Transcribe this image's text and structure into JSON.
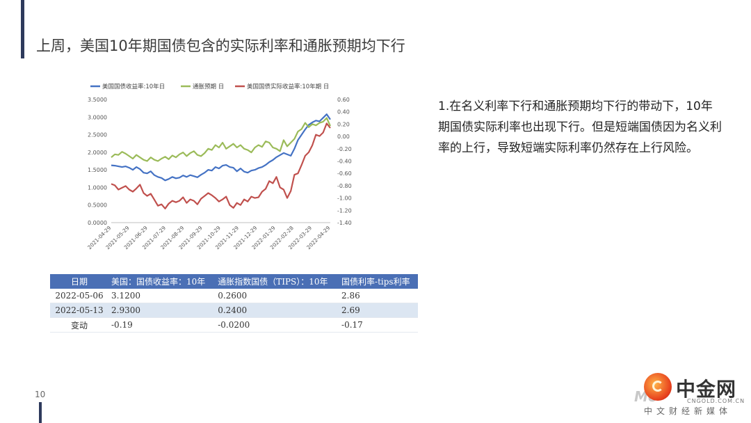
{
  "slide": {
    "title": "上周，美国10年期国债包含的实际利率和通胀预期均下行",
    "page_number": "10"
  },
  "side_text": "1.在名义利率下行和通胀预期均下行的带动下，10年期国债实际利率也出现下行。但是短端国债因为名义利率的上行，导致短端实际利率仍然存在上行风险。",
  "table": {
    "headers": [
      "日期",
      "美国：国债收益率：10年",
      "通胀指数国债（TIPS）：10年",
      "国债利率-tips利率"
    ],
    "rows": [
      [
        "2022-05-06",
        "3.1200",
        "0.2600",
        "2.86"
      ],
      [
        "2022-05-13",
        "2.9300",
        "0.2400",
        "2.69"
      ],
      [
        "变动",
        "-0.19",
        "-0.0200",
        "-0.17"
      ]
    ]
  },
  "logo": {
    "name": "中金网",
    "url": "CNGOLD.COM.CN",
    "tagline": "中文财经新媒体",
    "watermark": "Mo"
  },
  "colors": {
    "nominal": "#4472c4",
    "inflation": "#9bbb59",
    "real": "#c0504d",
    "accent": "#2e3a5c",
    "table_header": "#4a6fb5"
  },
  "chart_data": {
    "type": "line",
    "legend_position": "top",
    "grid": false,
    "x_ticks": [
      "2021-04-29",
      "2021-05-29",
      "2021-06-29",
      "2021-07-29",
      "2021-08-29",
      "2021-09-29",
      "2021-10-29",
      "2021-11-29",
      "2021-12-29",
      "2022-01-29",
      "2022-02-28",
      "2022-03-29",
      "2022-04-29"
    ],
    "y_left": {
      "ticks": [
        "0.0000",
        "0.5000",
        "1.0000",
        "1.5000",
        "2.0000",
        "2.5000",
        "3.0000",
        "3.5000"
      ],
      "range": [
        0,
        3.5
      ]
    },
    "y_right": {
      "ticks": [
        "-1.40",
        "-1.20",
        "-1.00",
        "-0.80",
        "-0.60",
        "-0.40",
        "-0.20",
        "0.00",
        "0.20",
        "0.40",
        "0.60"
      ],
      "range": [
        -1.4,
        0.6
      ]
    },
    "series": [
      {
        "name": "美国国债收益率:10年日",
        "axis": "left",
        "color": "#4472c4",
        "values": [
          1.63,
          1.62,
          1.6,
          1.58,
          1.6,
          1.56,
          1.5,
          1.58,
          1.52,
          1.42,
          1.4,
          1.46,
          1.35,
          1.3,
          1.27,
          1.2,
          1.24,
          1.3,
          1.26,
          1.28,
          1.34,
          1.3,
          1.35,
          1.32,
          1.29,
          1.36,
          1.42,
          1.5,
          1.48,
          1.58,
          1.54,
          1.62,
          1.64,
          1.58,
          1.56,
          1.46,
          1.54,
          1.45,
          1.42,
          1.48,
          1.5,
          1.55,
          1.58,
          1.64,
          1.72,
          1.78,
          1.86,
          1.92,
          1.98,
          1.94,
          1.9,
          2.1,
          2.35,
          2.5,
          2.65,
          2.78,
          2.85,
          2.9,
          2.88,
          2.98,
          3.08,
          2.93
        ]
      },
      {
        "name": "通胀预期 日",
        "axis": "right",
        "color": "#9bbb59",
        "values": [
          -0.34,
          -0.29,
          -0.3,
          -0.25,
          -0.28,
          -0.32,
          -0.36,
          -0.3,
          -0.34,
          -0.38,
          -0.4,
          -0.34,
          -0.38,
          -0.4,
          -0.36,
          -0.33,
          -0.37,
          -0.31,
          -0.34,
          -0.29,
          -0.26,
          -0.32,
          -0.27,
          -0.24,
          -0.3,
          -0.32,
          -0.27,
          -0.2,
          -0.22,
          -0.14,
          -0.18,
          -0.1,
          -0.2,
          -0.16,
          -0.12,
          -0.18,
          -0.14,
          -0.2,
          -0.22,
          -0.26,
          -0.18,
          -0.14,
          -0.17,
          -0.08,
          -0.1,
          -0.18,
          -0.2,
          -0.24,
          -0.06,
          -0.16,
          -0.1,
          -0.04,
          0.08,
          0.12,
          0.22,
          0.15,
          0.2,
          0.18,
          0.22,
          0.24,
          0.3,
          0.17
        ]
      },
      {
        "name": "美国国债实际收益率:10年期 日",
        "axis": "left",
        "color": "#c0504d",
        "values": [
          1.1,
          1.06,
          0.94,
          0.99,
          1.04,
          0.94,
          0.88,
          0.97,
          1.08,
          0.84,
          0.76,
          0.82,
          0.65,
          0.48,
          0.52,
          0.4,
          0.54,
          0.62,
          0.58,
          0.62,
          0.72,
          0.56,
          0.66,
          0.62,
          0.52,
          0.68,
          0.76,
          0.84,
          0.78,
          0.7,
          0.6,
          0.66,
          0.74,
          0.5,
          0.42,
          0.56,
          0.5,
          0.66,
          0.6,
          0.74,
          0.7,
          0.72,
          0.88,
          0.96,
          1.18,
          1.12,
          1.3,
          1.0,
          0.94,
          0.7,
          0.9,
          1.36,
          1.4,
          1.64,
          1.9,
          2.0,
          2.2,
          2.5,
          2.46,
          2.56,
          2.82,
          2.69
        ]
      }
    ]
  }
}
